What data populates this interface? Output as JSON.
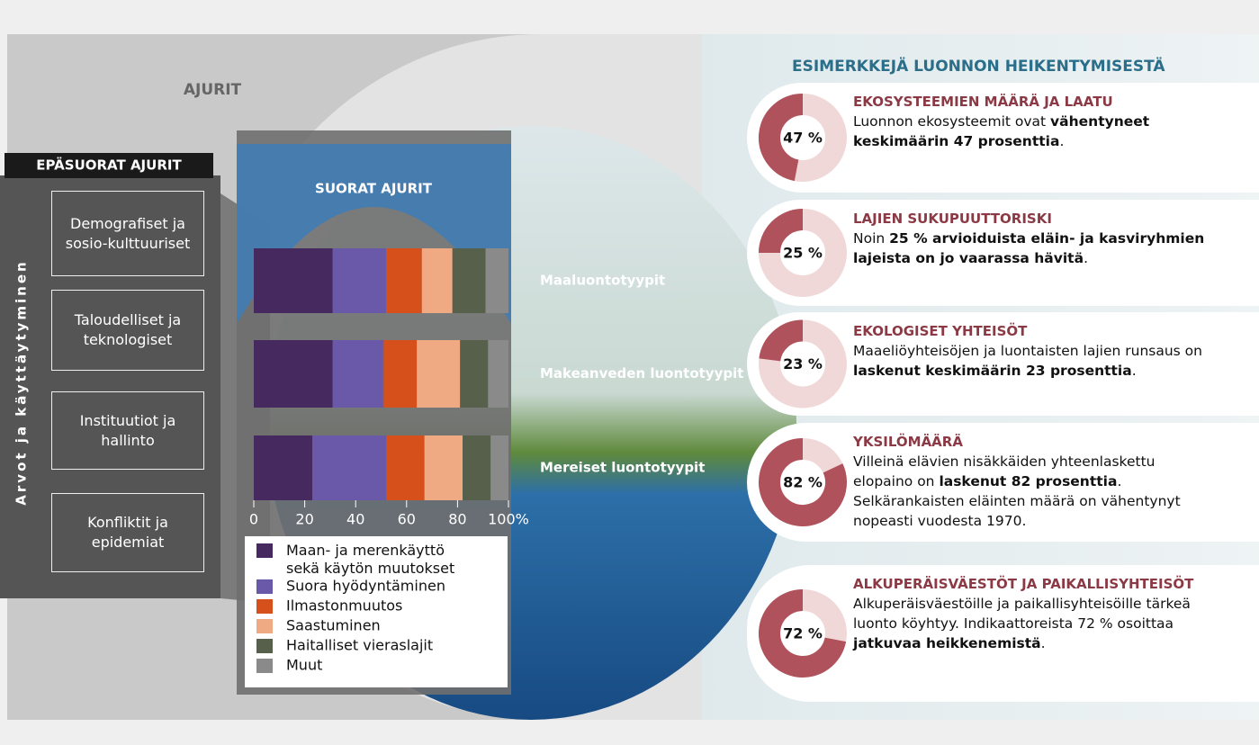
{
  "ajurit": "AJURIT",
  "indirect": {
    "title": "EPÄSUORAT AJURIT",
    "side_label": "Arvot ja käyttäytyminen",
    "boxes": [
      "Demografiset ja sosio-kulttuuriset",
      "Taloudelliset ja teknologiset",
      "Instituutiot ja hallinto",
      "Konfliktit ja epidemiat"
    ]
  },
  "examples_title": "ESIMERKKEJÄ LUONNON HEIKENTYMISESTÄ",
  "chart_data": [
    {
      "type": "bar",
      "orientation": "horizontal",
      "stacked": true,
      "title": "SUORAT AJURIT",
      "categories": [
        "Maaluontotyypit",
        "Makeanveden luontotyypit",
        "Mereiset luontotyypit"
      ],
      "series": [
        {
          "name": "Maan- ja merenkäyttö sekä käytön muutokset",
          "color": "#45295f",
          "values": [
            31,
            31,
            23
          ]
        },
        {
          "name": "Suora hyödyntäminen",
          "color": "#6a58a8",
          "values": [
            21,
            20,
            29
          ]
        },
        {
          "name": "Ilmastonmuutos",
          "color": "#d5501b",
          "values": [
            14,
            13,
            15
          ]
        },
        {
          "name": "Saastuminen",
          "color": "#efa983",
          "values": [
            12,
            17,
            15
          ]
        },
        {
          "name": "Haitalliset vieraslajit",
          "color": "#57604b",
          "values": [
            13,
            11,
            11
          ]
        },
        {
          "name": "Muut",
          "color": "#8a8a8a",
          "values": [
            9,
            8,
            7
          ]
        }
      ],
      "xlim": [
        0,
        100
      ],
      "xticks": [
        0,
        20,
        40,
        60,
        80,
        {
          "value": 100,
          "label": "100%"
        }
      ]
    },
    {
      "type": "pie",
      "title": "EKOSYSTEEMIEN MÄÄRÄ JA LAATU",
      "values": [
        47
      ],
      "value_labels": [
        "47 %"
      ],
      "color": "#b0525b",
      "track_color": "#f1d8d8",
      "text": [
        "Luonnon ekosysteemit ovat ",
        "vähentyneet keskimäärin 47 prosenttia",
        "."
      ]
    },
    {
      "type": "pie",
      "title": "LAJIEN SUKUPUUTTORISKI",
      "values": [
        25
      ],
      "value_labels": [
        "25 %"
      ],
      "color": "#b0525b",
      "track_color": "#f1d8d8",
      "text": [
        "Noin ",
        "25 % arvioiduista eläin- ja kasviryhmien lajeista on jo vaarassa hävitä",
        "."
      ]
    },
    {
      "type": "pie",
      "title": "EKOLOGISET YHTEISÖT",
      "values": [
        23
      ],
      "value_labels": [
        "23 %"
      ],
      "color": "#b0525b",
      "track_color": "#f1d8d8",
      "text": [
        "Maaeliöyhteisöjen ja luontaisten lajien runsaus on ",
        "laskenut keskimäärin 23 prosenttia",
        "."
      ]
    },
    {
      "type": "pie",
      "title": "YKSILÖMÄÄRÄ",
      "values": [
        82
      ],
      "value_labels": [
        "82 %"
      ],
      "color": "#b0525b",
      "track_color": "#f1d8d8",
      "text": [
        "Villeinä elävien nisäkkäiden yhteenlaskettu elopaino on ",
        "laskenut 82 prosenttia",
        ". Selkärankaisten eläinten määrä on vähentynyt nopeasti vuodesta 1970."
      ]
    },
    {
      "type": "pie",
      "title": "ALKUPERÄISVÄESTÖT JA PAIKALLISYHTEISÖT",
      "values": [
        72
      ],
      "value_labels": [
        "72 %"
      ],
      "color": "#b0525b",
      "track_color": "#f1d8d8",
      "text": [
        "Alkuperäisväestöille ja paikallisyhteisöille tärkeä luonto köyhtyy. Indikaattoreista 72 % osoittaa ",
        "jatkuvaa heikkenemistä",
        "."
      ]
    }
  ]
}
